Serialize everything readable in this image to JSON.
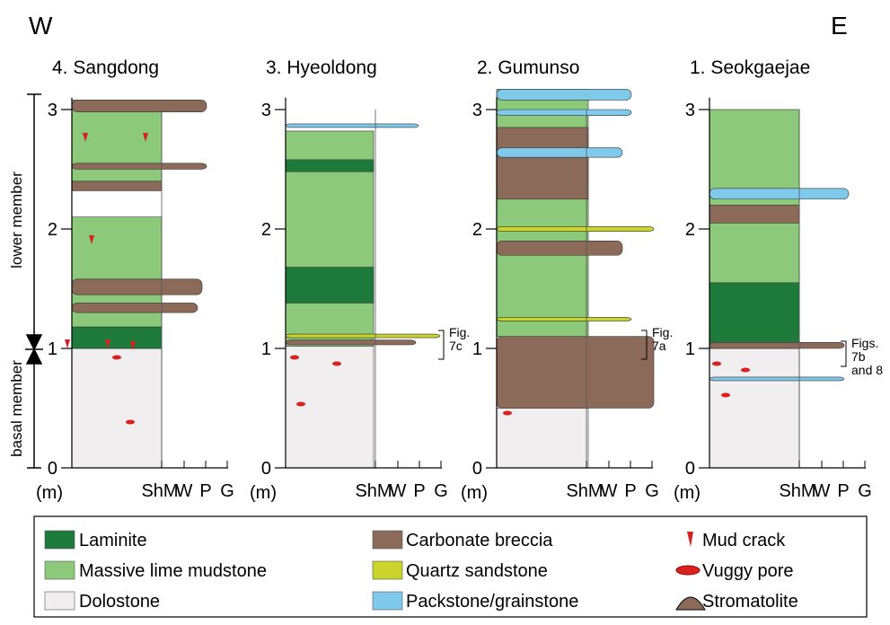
{
  "header": {
    "west": "W",
    "east": "E"
  },
  "members": {
    "lower": "lower member",
    "basal": "basal member"
  },
  "columns": [
    {
      "title": "4. Sangdong",
      "y_ticks": [
        "0",
        "1",
        "2",
        "3"
      ],
      "unit": "(m)",
      "grain_labels": [
        "ShM",
        "W",
        "P",
        "G"
      ]
    },
    {
      "title": "3. Hyeoldong",
      "y_ticks": [
        "0",
        "1",
        "2",
        "3"
      ],
      "unit": "(m)",
      "grain_labels": [
        "ShM",
        "W",
        "P",
        "G"
      ],
      "annotation": [
        "Fig.",
        "7c"
      ]
    },
    {
      "title": "2. Gumunso",
      "y_ticks": [
        "0",
        "1",
        "2",
        "3"
      ],
      "unit": "(m)",
      "grain_labels": [
        "ShM",
        "W",
        "P",
        "G"
      ],
      "annotation": [
        "Fig.",
        "7a"
      ]
    },
    {
      "title": "1. Seokgaejae",
      "y_ticks": [
        "0",
        "1",
        "2",
        "3"
      ],
      "unit": "(m)",
      "grain_labels": [
        "ShM",
        "W",
        "P",
        "G"
      ],
      "annotation": [
        "Figs.",
        "7b",
        "and 8"
      ]
    }
  ],
  "legend": {
    "items": [
      "Laminite",
      "Massive lime mudstone",
      "Dolostone",
      "Carbonate breccia",
      "Quartz sandstone",
      "Packstone/grainstone",
      "Mud crack",
      "Vuggy pore",
      "Stromatolite"
    ]
  }
}
